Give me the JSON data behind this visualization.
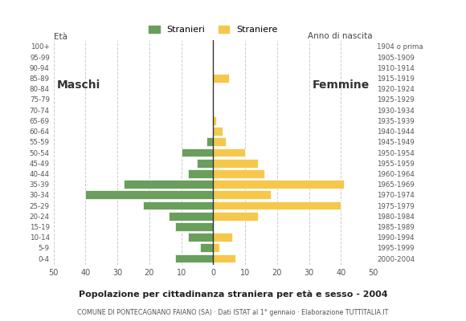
{
  "age_groups": [
    "0-4",
    "5-9",
    "10-14",
    "15-19",
    "20-24",
    "25-29",
    "30-34",
    "35-39",
    "40-44",
    "45-49",
    "50-54",
    "55-59",
    "60-64",
    "65-69",
    "70-74",
    "75-79",
    "80-84",
    "85-89",
    "90-94",
    "95-99",
    "100+"
  ],
  "birth_years": [
    "2000-2004",
    "1995-1999",
    "1990-1994",
    "1985-1989",
    "1980-1984",
    "1975-1979",
    "1970-1974",
    "1965-1969",
    "1960-1964",
    "1955-1959",
    "1950-1954",
    "1945-1949",
    "1940-1944",
    "1935-1939",
    "1930-1934",
    "1925-1929",
    "1920-1924",
    "1915-1919",
    "1910-1914",
    "1905-1909",
    "1904 o prima"
  ],
  "males": [
    12,
    4,
    8,
    12,
    14,
    22,
    40,
    28,
    8,
    5,
    10,
    2,
    0,
    0,
    0,
    0,
    0,
    0,
    0,
    0,
    0
  ],
  "females": [
    7,
    2,
    6,
    0,
    14,
    40,
    18,
    41,
    16,
    14,
    10,
    4,
    3,
    1,
    0,
    0,
    0,
    5,
    0,
    0,
    0
  ],
  "male_color": "#6a9e5c",
  "female_color": "#f5c84c",
  "title": "Popolazione per cittadinanza straniera per età e sesso - 2004",
  "subtitle": "COMUNE DI PONTECAGNANO FAIANO (SA) · Dati ISTAT al 1° gennaio · Elaborazione TUTTITALIA.IT",
  "eta_label": "Età",
  "anno_label": "Anno di nascita",
  "xlim": 50,
  "legend_stranieri": "Stranieri",
  "legend_straniere": "Straniere",
  "maschi_label": "Maschi",
  "femmine_label": "Femmine"
}
